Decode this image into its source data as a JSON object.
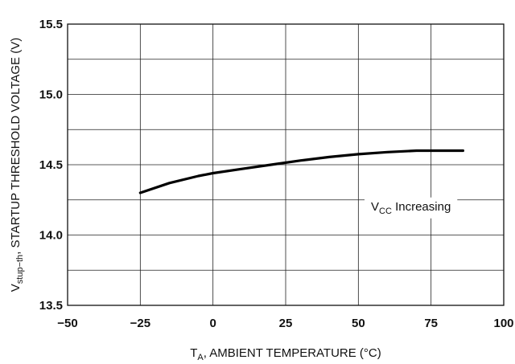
{
  "chart_data": {
    "type": "line",
    "x_ticks": [
      -50,
      -25,
      0,
      25,
      50,
      75,
      100
    ],
    "y_ticks": [
      13.5,
      14.0,
      14.5,
      15.0,
      15.5
    ],
    "x_tick_labels": [
      "−50",
      "−25",
      "0",
      "25",
      "50",
      "75",
      "100"
    ],
    "y_tick_labels": [
      "13.5",
      "14.0",
      "14.5",
      "15.0",
      "15.5"
    ],
    "xlim": [
      -50,
      100
    ],
    "ylim": [
      13.5,
      15.5
    ],
    "x_gridlines": [
      -50,
      -25,
      0,
      25,
      50,
      75,
      100
    ],
    "y_gridlines": [
      13.5,
      13.75,
      14.0,
      14.25,
      14.5,
      14.75,
      15.0,
      15.25,
      15.5
    ],
    "grid": true,
    "xlabel": {
      "main": "T",
      "sub": "A",
      "rest": ", AMBIENT TEMPERATURE (°C)"
    },
    "ylabel": {
      "main": "V",
      "sub": "stup−th",
      "rest": ", STARTUP THRESHOLD VOLTAGE (V)"
    },
    "annotation": {
      "main": "V",
      "sub": "CC",
      "rest": " Increasing"
    },
    "series": [
      {
        "x": [
          -25,
          -15,
          -5,
          0,
          10,
          20,
          30,
          40,
          50,
          60,
          70,
          80,
          86
        ],
        "y": [
          14.3,
          14.37,
          14.42,
          14.44,
          14.47,
          14.5,
          14.53,
          14.555,
          14.575,
          14.59,
          14.6,
          14.6,
          14.6
        ]
      }
    ]
  }
}
